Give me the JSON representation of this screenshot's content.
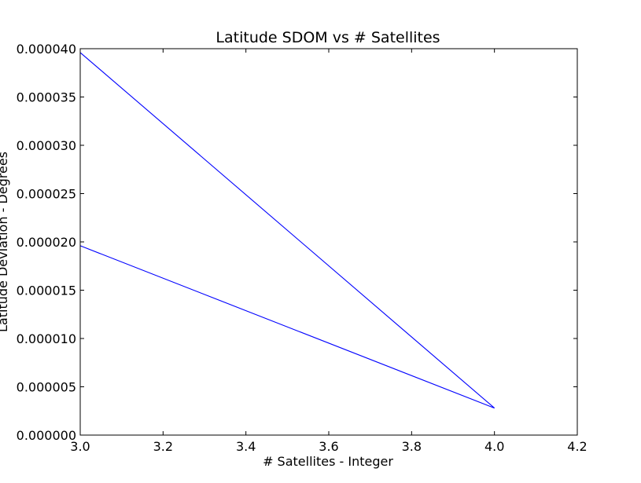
{
  "chart_data": {
    "type": "line",
    "title": "Latitude SDOM vs # Satellites",
    "xlabel": "# Satellites - Integer",
    "ylabel": "Latitude Deviation - Degrees",
    "xlim": [
      3.0,
      4.2
    ],
    "ylim": [
      0.0,
      4e-05
    ],
    "x_ticks": [
      "3.0",
      "3.2",
      "3.4",
      "3.6",
      "3.8",
      "4.0",
      "4.2"
    ],
    "y_ticks": [
      "0.000000",
      "0.000005",
      "0.000010",
      "0.000015",
      "0.000020",
      "0.000025",
      "0.000030",
      "0.000035",
      "0.000040"
    ],
    "grid": false,
    "series": [
      {
        "color": "#0000ff",
        "points": [
          {
            "x": 3.0,
            "y": 3.96e-05
          },
          {
            "x": 4.0,
            "y": 2.8e-06
          },
          {
            "x": 3.0,
            "y": 1.96e-05
          }
        ]
      }
    ]
  }
}
